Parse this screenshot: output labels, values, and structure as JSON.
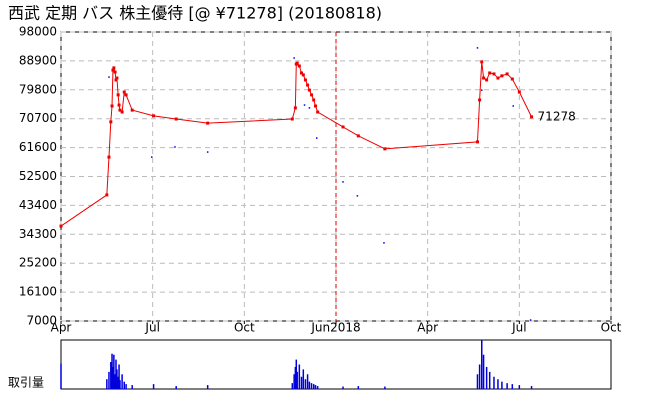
{
  "chart_data": {
    "type": "line",
    "title": "西武 定期 バス 株主優待  [@ ¥71278] (20180818)",
    "xlim": [
      0,
      18
    ],
    "xticks": [
      {
        "value": 0,
        "label": "Apr"
      },
      {
        "value": 3,
        "label": "Jul"
      },
      {
        "value": 6,
        "label": "Oct"
      },
      {
        "value": 9,
        "label": "Jun2018"
      },
      {
        "value": 12,
        "label": "Apr"
      },
      {
        "value": 15,
        "label": "Jul"
      },
      {
        "value": 18,
        "label": "Oct"
      }
    ],
    "ylim": [
      7000,
      98000
    ],
    "yticks": [
      7000,
      16100,
      25200,
      34300,
      43400,
      52500,
      61600,
      70700,
      79800,
      88900,
      98000
    ],
    "grid": true,
    "divider_x": 9,
    "divider_color": "#dd0000",
    "series": [
      {
        "color": "#ee0000",
        "mode": "line",
        "x": [
          0,
          1.5,
          1.57,
          1.63,
          1.67,
          1.7,
          1.73,
          1.77,
          1.8,
          1.83,
          1.87,
          1.9,
          1.93,
          2.0,
          2.07,
          2.13,
          2.33,
          3.03,
          3.77,
          4.8,
          7.57,
          7.67,
          7.7,
          7.73,
          7.8,
          7.87,
          7.93,
          8.0,
          8.07,
          8.13,
          8.2,
          8.27,
          8.33,
          8.4,
          9.23,
          9.73,
          10.6,
          13.63,
          13.7,
          13.77,
          13.83,
          13.93,
          14.03,
          14.17,
          14.3,
          14.43,
          14.6,
          14.77,
          15.0,
          15.4
        ],
        "values": [
          36900,
          46700,
          58600,
          69700,
          74700,
          86000,
          86700,
          85400,
          82900,
          83500,
          78200,
          75000,
          73400,
          72800,
          79100,
          78200,
          73400,
          71600,
          70600,
          69300,
          70600,
          74100,
          87900,
          88200,
          87300,
          85100,
          84500,
          82900,
          81300,
          79700,
          78200,
          76600,
          74700,
          72800,
          68100,
          65300,
          61200,
          63400,
          76600,
          88600,
          83500,
          82900,
          85100,
          84800,
          83500,
          84200,
          84800,
          83200,
          79100,
          71278
        ]
      },
      {
        "color": "#0000ee",
        "mode": "points",
        "x": [
          1.57,
          2.97,
          3.73,
          4.8,
          7.63,
          7.97,
          8.13,
          8.37,
          9.23,
          9.7,
          10.57,
          13.63,
          13.77,
          14.8,
          15.37
        ],
        "values": [
          83800,
          58600,
          61800,
          60200,
          89800,
          75000,
          74100,
          64600,
          50800,
          46400,
          31600,
          93000,
          79700,
          74700,
          7300
        ]
      }
    ],
    "annotation": "71278",
    "volume": {
      "label": "取引量",
      "color": "#0000dd",
      "ylim": [
        0,
        100
      ],
      "x": [
        0,
        1.5,
        1.57,
        1.63,
        1.67,
        1.7,
        1.73,
        1.77,
        1.8,
        1.83,
        1.87,
        1.9,
        1.93,
        2.0,
        2.07,
        2.13,
        2.33,
        3.03,
        3.77,
        4.8,
        7.57,
        7.63,
        7.67,
        7.7,
        7.73,
        7.8,
        7.87,
        7.93,
        8.0,
        8.07,
        8.13,
        8.2,
        8.27,
        8.33,
        8.4,
        9.23,
        9.73,
        10.6,
        13.63,
        13.7,
        13.77,
        13.83,
        13.93,
        14.03,
        14.17,
        14.3,
        14.43,
        14.6,
        14.77,
        15.0,
        15.4
      ],
      "values": [
        52,
        20,
        35,
        55,
        72,
        45,
        70,
        30,
        60,
        40,
        25,
        50,
        18,
        30,
        15,
        10,
        8,
        10,
        6,
        8,
        12,
        30,
        45,
        60,
        35,
        50,
        25,
        40,
        20,
        30,
        15,
        12,
        10,
        8,
        6,
        5,
        6,
        5,
        30,
        50,
        100,
        70,
        45,
        35,
        25,
        20,
        15,
        12,
        10,
        8,
        6
      ]
    }
  }
}
